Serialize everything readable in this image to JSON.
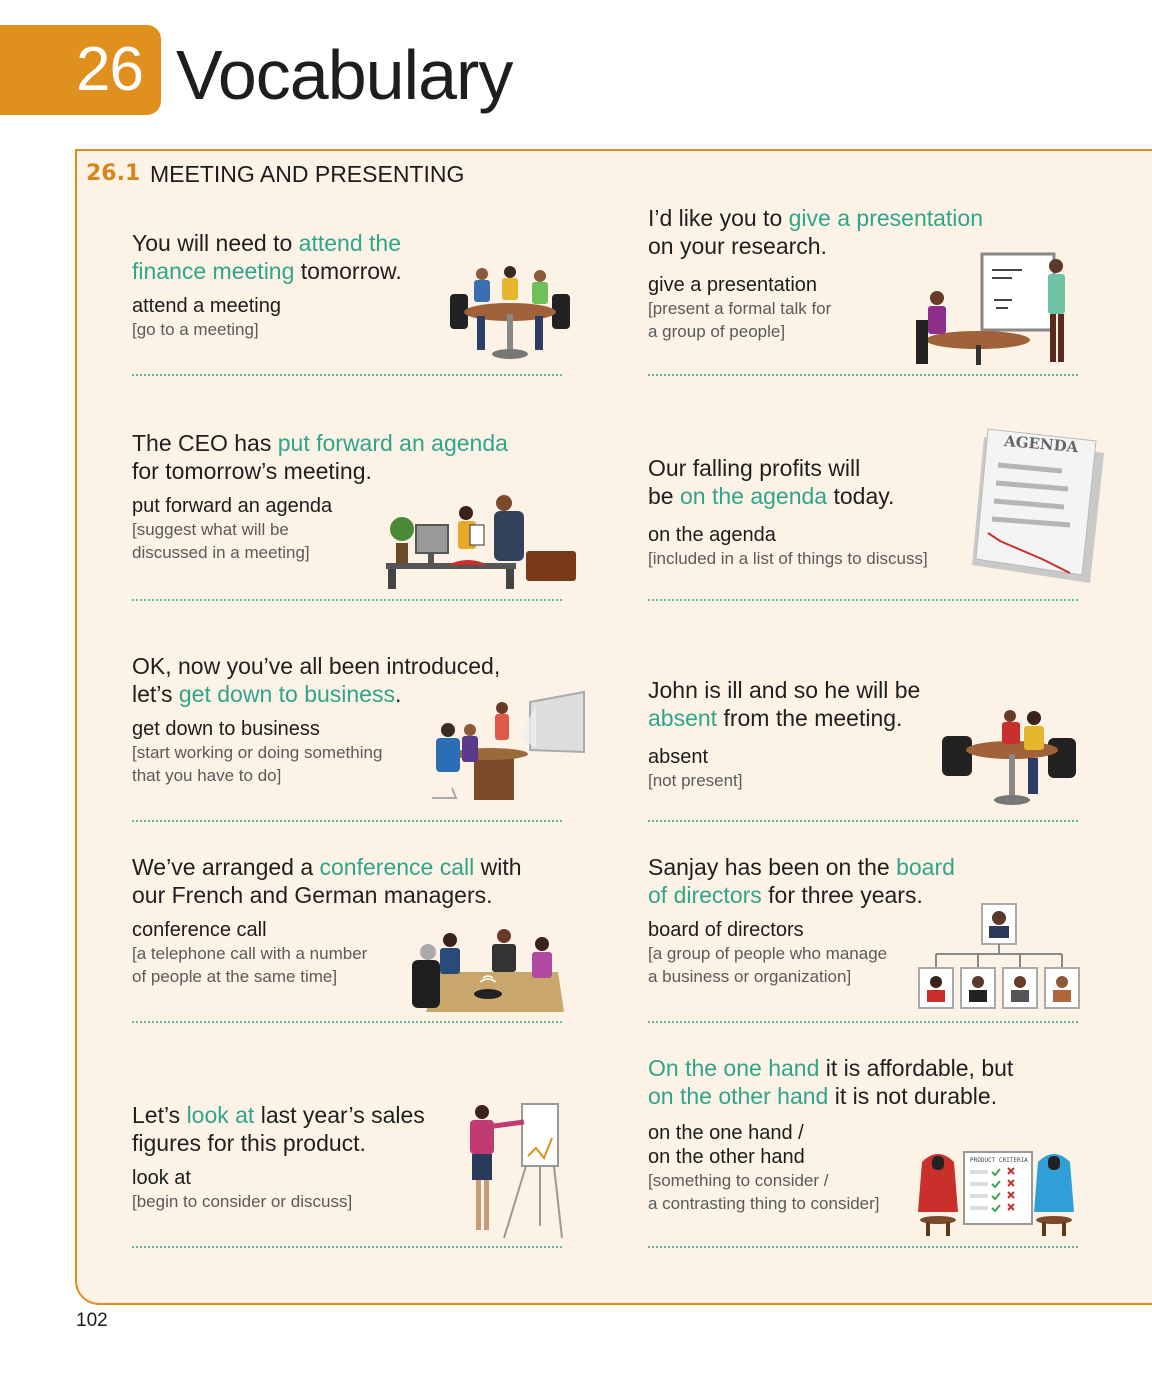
{
  "chapter": {
    "number": "26",
    "title": "Vocabulary"
  },
  "section": {
    "number": "26.1",
    "title": "MEETING AND PRESENTING"
  },
  "page_number": "102",
  "entries": [
    {
      "id": "attend",
      "sentence": [
        {
          "t": "You will need to ",
          "hl": false
        },
        {
          "t": "attend the",
          "hl": true
        },
        {
          "t": "\n",
          "hl": false
        },
        {
          "t": "finance meeting",
          "hl": true
        },
        {
          "t": " tomorrow.",
          "hl": false
        }
      ],
      "term": "attend a meeting",
      "definition": "[go to a meeting]"
    },
    {
      "id": "presentation",
      "sentence": [
        {
          "t": "I’d like you to ",
          "hl": false
        },
        {
          "t": "give a presentation",
          "hl": true
        },
        {
          "t": "\non your research.",
          "hl": false
        }
      ],
      "term": "give a presentation",
      "definition": "[present a formal talk for\na group of people]"
    },
    {
      "id": "agenda",
      "sentence": [
        {
          "t": "The CEO has ",
          "hl": false
        },
        {
          "t": "put forward an agenda",
          "hl": true
        },
        {
          "t": "\nfor tomorrow’s meeting.",
          "hl": false
        }
      ],
      "term": "put forward an agenda",
      "definition": "[suggest what will be\ndiscussed in a meeting]"
    },
    {
      "id": "on-agenda",
      "sentence": [
        {
          "t": "Our falling profits will\nbe ",
          "hl": false
        },
        {
          "t": "on the agenda",
          "hl": true
        },
        {
          "t": " today.",
          "hl": false
        }
      ],
      "term": "on the agenda",
      "definition": "[included in a list of things to discuss]"
    },
    {
      "id": "business",
      "sentence": [
        {
          "t": "OK, now you’ve all been introduced,\nlet’s ",
          "hl": false
        },
        {
          "t": "get down to business",
          "hl": true
        },
        {
          "t": ".",
          "hl": false
        }
      ],
      "term": "get down to business",
      "definition": "[start working or doing something\nthat you have to do]"
    },
    {
      "id": "absent",
      "sentence": [
        {
          "t": "John is ill and so he will be\n",
          "hl": false
        },
        {
          "t": "absent",
          "hl": true
        },
        {
          "t": " from the meeting.",
          "hl": false
        }
      ],
      "term": "absent",
      "definition": "[not present]"
    },
    {
      "id": "conference",
      "sentence": [
        {
          "t": "We’ve arranged a ",
          "hl": false
        },
        {
          "t": "conference call",
          "hl": true
        },
        {
          "t": " with\nour French and German managers.",
          "hl": false
        }
      ],
      "term": "conference call",
      "definition": "[a telephone call with a number\nof people at the same time]"
    },
    {
      "id": "board",
      "sentence": [
        {
          "t": "Sanjay has been on the ",
          "hl": false
        },
        {
          "t": "board\nof directors",
          "hl": true
        },
        {
          "t": " for three years.",
          "hl": false
        }
      ],
      "term": "board of directors",
      "definition": "[a group of people who manage\na business or organization]"
    },
    {
      "id": "look",
      "sentence": [
        {
          "t": "Let’s ",
          "hl": false
        },
        {
          "t": "look at",
          "hl": true
        },
        {
          "t": " last year’s sales\nfigures for this product.",
          "hl": false
        }
      ],
      "term": "look at",
      "definition": "[begin to consider or discuss]"
    },
    {
      "id": "hand",
      "sentence": [
        {
          "t": "On the one hand",
          "hl": true
        },
        {
          "t": " it is affordable, but\n",
          "hl": false
        },
        {
          "t": "on the other hand",
          "hl": true
        },
        {
          "t": " it is not durable.",
          "hl": false
        }
      ],
      "term": "on the one hand /\non the other hand",
      "definition": "[something to consider /\na contrasting thing to consider]"
    }
  ],
  "agenda_sheet": {
    "title": "AGENDA"
  },
  "criteria_board": {
    "title": "PRODUCT CRITERIA"
  }
}
